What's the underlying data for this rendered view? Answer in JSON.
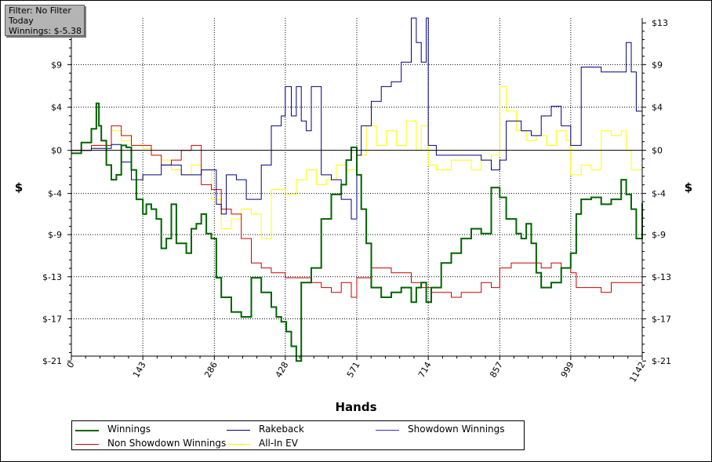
{
  "filter_box": {
    "line1": "Filter: No Filter",
    "line2": "Today",
    "line3": "Winnings: $-5.38"
  },
  "chart_data": {
    "type": "line",
    "xlabel": "Hands",
    "ylabel": "$",
    "xlim": [
      0,
      1142
    ],
    "ylim": [
      -21,
      13.5
    ],
    "x_ticks": [
      "0",
      "143",
      "286",
      "428",
      "571",
      "714",
      "857",
      "999",
      "1142"
    ],
    "x_tick_values": [
      0,
      143,
      286,
      428,
      571,
      714,
      857,
      999,
      1142
    ],
    "y_ticks": [
      "$13",
      "$9",
      "$4",
      "$0",
      "$-4",
      "$-9",
      "$-13",
      "$-17",
      "$-21"
    ],
    "y_tick_values": [
      13,
      8.75,
      4.4,
      0,
      -4.4,
      -8.6,
      -12.9,
      -17.2,
      -21.5
    ],
    "grid": true,
    "legend_position": "bottom",
    "series": [
      {
        "name": "Winnings",
        "color": "#006400",
        "x": [
          0,
          20,
          40,
          50,
          55,
          60,
          70,
          80,
          90,
          100,
          110,
          120,
          130,
          143,
          150,
          160,
          170,
          180,
          190,
          200,
          210,
          230,
          240,
          250,
          260,
          270,
          280,
          290,
          300,
          320,
          340,
          360,
          380,
          400,
          410,
          420,
          430,
          440,
          450,
          460,
          480,
          500,
          520,
          540,
          550,
          560,
          571,
          580,
          590,
          600,
          620,
          640,
          660,
          680,
          690,
          700,
          710,
          720,
          740,
          760,
          780,
          800,
          820,
          840,
          857,
          870,
          890,
          900,
          910,
          920,
          930,
          940,
          960,
          980,
          999,
          1010,
          1020,
          1040,
          1060,
          1080,
          1100,
          1110,
          1120,
          1130,
          1142
        ],
        "y": [
          -0.3,
          0.8,
          2.2,
          4.8,
          2.5,
          1.0,
          -1.5,
          -3.0,
          -2.5,
          0.5,
          0.3,
          -2.0,
          -5.0,
          -6.5,
          -5.5,
          -6.0,
          -7.0,
          -10.0,
          -9.0,
          -5.5,
          -9.5,
          -10.5,
          -8.0,
          -7.5,
          -6.5,
          -8.5,
          -9.0,
          -13.0,
          -15.0,
          -16.5,
          -17.0,
          -13.0,
          -14.5,
          -16.0,
          -17.0,
          -17.5,
          -18.5,
          -20.0,
          -21.5,
          -13.5,
          -12.0,
          -7.0,
          -4.5,
          -3.5,
          -1.0,
          0.3,
          -2.5,
          -6.0,
          -9.5,
          -14.0,
          -15.0,
          -14.5,
          -14.0,
          -15.5,
          -14.0,
          -13.5,
          -15.5,
          -14.0,
          -11.5,
          -10.5,
          -9.0,
          -8.0,
          -8.5,
          -3.8,
          -4.8,
          -7.0,
          -8.5,
          -9.0,
          -7.5,
          -9.5,
          -12.5,
          -14.0,
          -13.5,
          -12.0,
          -10.5,
          -6.5,
          -5.0,
          -4.8,
          -5.5,
          -5.0,
          -3.0,
          -4.5,
          -6.0,
          -9.0,
          -5.38
        ]
      },
      {
        "name": "Rakeback",
        "color": "#000080",
        "x": [
          0,
          40,
          80,
          100,
          120,
          143,
          180,
          220,
          260,
          290,
          300,
          310,
          330,
          350,
          370,
          380,
          400,
          420,
          428,
          440,
          450,
          460,
          470,
          480,
          500,
          520,
          540,
          560,
          571,
          580,
          600,
          620,
          640,
          660,
          680,
          690,
          700,
          710,
          714,
          730,
          760,
          800,
          820,
          840,
          857,
          870,
          900,
          920,
          940,
          960,
          980,
          999,
          1010,
          1020,
          1040,
          1060,
          1080,
          1100,
          1110,
          1120,
          1130,
          1142
        ],
        "y": [
          0,
          0.2,
          0.6,
          -1.2,
          -3.0,
          -2.5,
          -1.5,
          -2.5,
          -2.0,
          -5.5,
          -6.5,
          -2.5,
          -3.0,
          -5.0,
          -5.0,
          -1.5,
          2.5,
          3.5,
          6.5,
          3.5,
          6.5,
          3.0,
          2.0,
          6.5,
          -2.5,
          -3.0,
          -5.0,
          -7.0,
          -0.5,
          2.5,
          5.0,
          6.5,
          7.0,
          9.0,
          13.5,
          11.0,
          9.0,
          13.5,
          0.5,
          -0.5,
          -0.5,
          -0.5,
          -1.0,
          -2.0,
          -1.0,
          3.0,
          2.0,
          1.5,
          3.5,
          4.5,
          2.5,
          0.5,
          0.5,
          8.5,
          8.5,
          8.0,
          8.0,
          8.0,
          11.0,
          8.0,
          4.0,
          5.0
        ]
      },
      {
        "name": "Showdown Winnings",
        "color": "#3333cc",
        "x": [
          0,
          1142
        ],
        "y": [
          0,
          0
        ]
      },
      {
        "name": "Non Showdown Winnings",
        "color": "#cc0000",
        "x": [
          0,
          40,
          80,
          100,
          120,
          143,
          160,
          180,
          200,
          220,
          240,
          260,
          280,
          300,
          320,
          340,
          360,
          380,
          400,
          428,
          450,
          480,
          500,
          520,
          540,
          560,
          571,
          600,
          640,
          680,
          700,
          720,
          740,
          760,
          780,
          800,
          820,
          840,
          857,
          880,
          900,
          920,
          940,
          960,
          980,
          999,
          1010,
          1040,
          1060,
          1080,
          1100,
          1120,
          1142
        ],
        "y": [
          0,
          0.5,
          2.5,
          1.5,
          0.5,
          0.5,
          -0.5,
          -1.5,
          -1.0,
          0.0,
          0.5,
          -3.5,
          -4.0,
          -6.0,
          -6.5,
          -9.0,
          -11.5,
          -12.0,
          -12.5,
          -13.0,
          -13.0,
          -13.5,
          -14.0,
          -14.5,
          -13.5,
          -15.0,
          -13.0,
          -12.0,
          -12.5,
          -13.5,
          -14.0,
          -14.5,
          -14.5,
          -15.0,
          -14.5,
          -14.5,
          -13.5,
          -14.0,
          -12.0,
          -11.5,
          -11.5,
          -11.5,
          -12.0,
          -11.5,
          -12.0,
          -12.5,
          -14.0,
          -14.0,
          -14.5,
          -13.5,
          -13.5,
          -13.5,
          -13.0
        ]
      },
      {
        "name": "All-In EV",
        "color": "#ffff00",
        "x": [
          0,
          40,
          80,
          100,
          120,
          143,
          160,
          180,
          200,
          220,
          240,
          260,
          280,
          300,
          320,
          340,
          360,
          380,
          400,
          428,
          450,
          470,
          490,
          510,
          530,
          550,
          571,
          590,
          610,
          630,
          650,
          670,
          690,
          700,
          714,
          730,
          760,
          800,
          820,
          840,
          857,
          870,
          890,
          910,
          930,
          950,
          970,
          990,
          999,
          1020,
          1040,
          1060,
          1080,
          1100,
          1110,
          1120,
          1142
        ],
        "y": [
          0,
          0.5,
          2.0,
          1.0,
          0.5,
          0.2,
          -0.5,
          -1.0,
          -2.0,
          -2.5,
          -1.5,
          -2.0,
          -5.0,
          -8.0,
          -7.0,
          -6.0,
          -6.5,
          -9.0,
          -4.0,
          -4.5,
          -3.0,
          -2.0,
          -3.5,
          -3.0,
          -1.5,
          -2.0,
          -0.5,
          2.5,
          0.5,
          2.0,
          0.5,
          3.0,
          0.0,
          2.5,
          -1.5,
          -2.0,
          -1.0,
          -2.0,
          -1.0,
          -0.5,
          6.5,
          4.0,
          2.0,
          1.0,
          1.5,
          0.5,
          2.0,
          1.0,
          -2.5,
          -1.5,
          -2.0,
          2.0,
          1.5,
          2.0,
          0.0,
          -2.0,
          -4.0
        ]
      }
    ]
  },
  "legend": {
    "items": [
      {
        "label": "Winnings",
        "color": "#006400"
      },
      {
        "label": "Rakeback",
        "color": "#000080"
      },
      {
        "label": "Showdown Winnings",
        "color": "#3333cc"
      },
      {
        "label": "Non Showdown Winnings",
        "color": "#cc0000"
      },
      {
        "label": "All-In EV",
        "color": "#ffff00"
      }
    ]
  }
}
